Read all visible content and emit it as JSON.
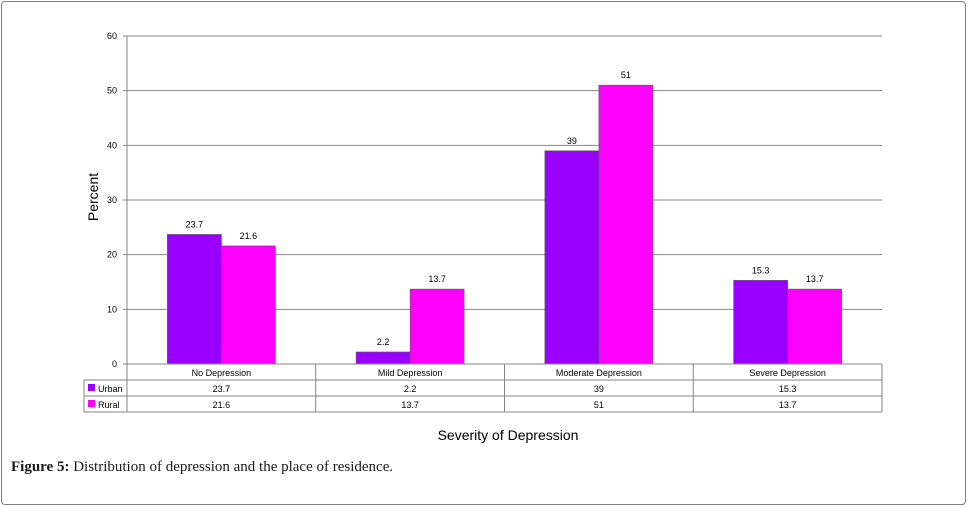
{
  "chart_data": {
    "type": "bar",
    "categories": [
      "No Depression",
      "Mild Depression",
      "Moderate Depression",
      "Severe Depression"
    ],
    "series": [
      {
        "name": "Urban",
        "values": [
          23.7,
          2.2,
          39,
          15.3
        ],
        "color": "#9900ff"
      },
      {
        "name": "Rural",
        "values": [
          21.6,
          13.7,
          51,
          13.7
        ],
        "color": "#ff00ff"
      }
    ],
    "data_labels": {
      "Urban": [
        "23.7",
        "2.2",
        "39",
        "15.3"
      ],
      "Rural": [
        "21.6",
        "13.7",
        "51",
        "13.7"
      ]
    },
    "table_values": {
      "Urban": [
        "23.7",
        "2.2",
        "39",
        "15.3"
      ],
      "Rural": [
        "21.6",
        "13.7",
        "51",
        "13.7"
      ]
    },
    "yticks": [
      "0",
      "10",
      "20",
      "30",
      "40",
      "50",
      "60"
    ],
    "ylim": [
      0,
      60
    ],
    "ylabel": "Percent",
    "xlabel": "Severity of Depression",
    "grid": true,
    "legend": "data-table"
  },
  "caption": {
    "label": "Figure 5:",
    "text": "Distribution of depression and the place of residence."
  }
}
